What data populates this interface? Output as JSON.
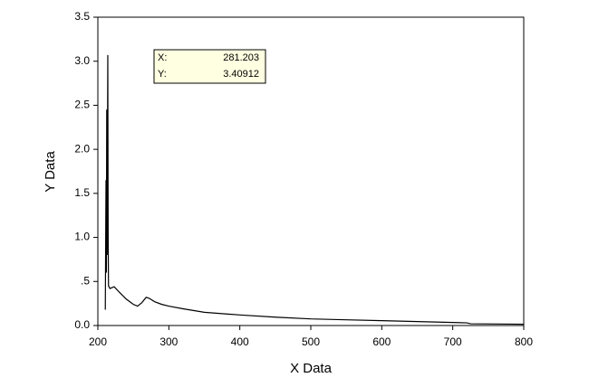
{
  "chart_data": {
    "type": "line",
    "xlabel": "X Data",
    "ylabel": "Y Data",
    "xlim": [
      200,
      800
    ],
    "ylim": [
      0,
      3.5
    ],
    "xticks": [
      200,
      300,
      400,
      500,
      600,
      700,
      800
    ],
    "yticks": [
      {
        "value": 0,
        "label": "0.0"
      },
      {
        "value": 0.5,
        "label": ".5"
      },
      {
        "value": 1,
        "label": "1.0"
      },
      {
        "value": 1.5,
        "label": "1.5"
      },
      {
        "value": 2,
        "label": "2.0"
      },
      {
        "value": 2.5,
        "label": "2.5"
      },
      {
        "value": 3,
        "label": "3.0"
      },
      {
        "value": 3.5,
        "label": "3.5"
      }
    ],
    "grid": false,
    "series": [
      {
        "color": "#000000",
        "x": [
          210.5,
          211.5,
          212,
          212.5,
          213,
          214,
          214.5,
          215,
          217,
          220,
          223,
          230,
          240,
          250,
          256,
          262,
          268,
          272,
          280,
          290,
          300,
          320,
          350,
          400,
          450,
          500,
          550,
          600,
          650,
          700,
          720,
          725,
          800
        ],
        "values": [
          0.18,
          1.65,
          0.6,
          2.45,
          0.8,
          3.07,
          1.0,
          0.45,
          0.42,
          0.43,
          0.44,
          0.38,
          0.3,
          0.24,
          0.22,
          0.26,
          0.32,
          0.31,
          0.27,
          0.24,
          0.22,
          0.19,
          0.15,
          0.12,
          0.095,
          0.075,
          0.065,
          0.055,
          0.045,
          0.035,
          0.03,
          0.02,
          0.015
        ]
      }
    ],
    "tooltip": [
      {
        "label": "X:",
        "value": "281.203"
      },
      {
        "label": "Y:",
        "value": "3.40912"
      }
    ]
  }
}
